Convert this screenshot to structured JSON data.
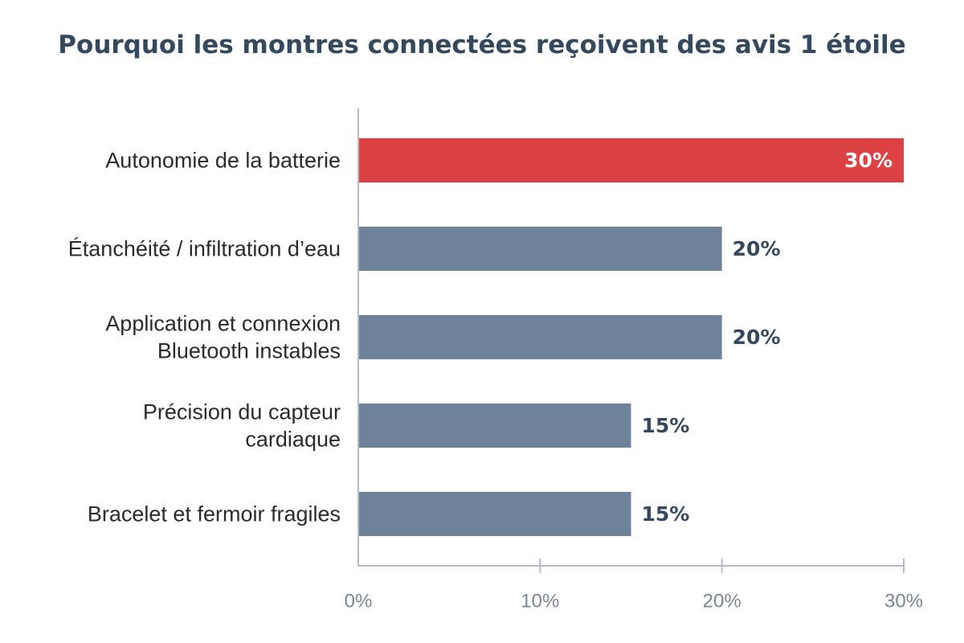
{
  "chart_data": {
    "type": "bar",
    "orientation": "horizontal",
    "title": "Pourquoi les montres connectées reçoivent des avis 1 étoile",
    "xlabel": "",
    "ylabel": "",
    "categories": [
      [
        "Autonomie de la batterie"
      ],
      [
        "Étanchéité / infiltration d’eau"
      ],
      [
        "Application et connexion",
        "Bluetooth instables"
      ],
      [
        "Précision du capteur",
        "cardiaque"
      ],
      [
        "Bracelet et fermoir fragiles"
      ]
    ],
    "values": [
      30,
      20,
      20,
      15,
      15
    ],
    "value_labels": [
      "30%",
      "20%",
      "20%",
      "15%",
      "15%"
    ],
    "xlim": [
      0,
      30
    ],
    "ticks": [
      0,
      10,
      20,
      30
    ],
    "tick_labels": [
      "0%",
      "10%",
      "20%",
      "30%"
    ],
    "grid": false,
    "highlight_index": 0,
    "colors": {
      "highlight": "#dc4144",
      "default": "#6e8299",
      "axis": "#b4bcc6",
      "title": "#34495e",
      "value_text_dark": "#34495e",
      "value_text_light": "#ffffff"
    }
  }
}
